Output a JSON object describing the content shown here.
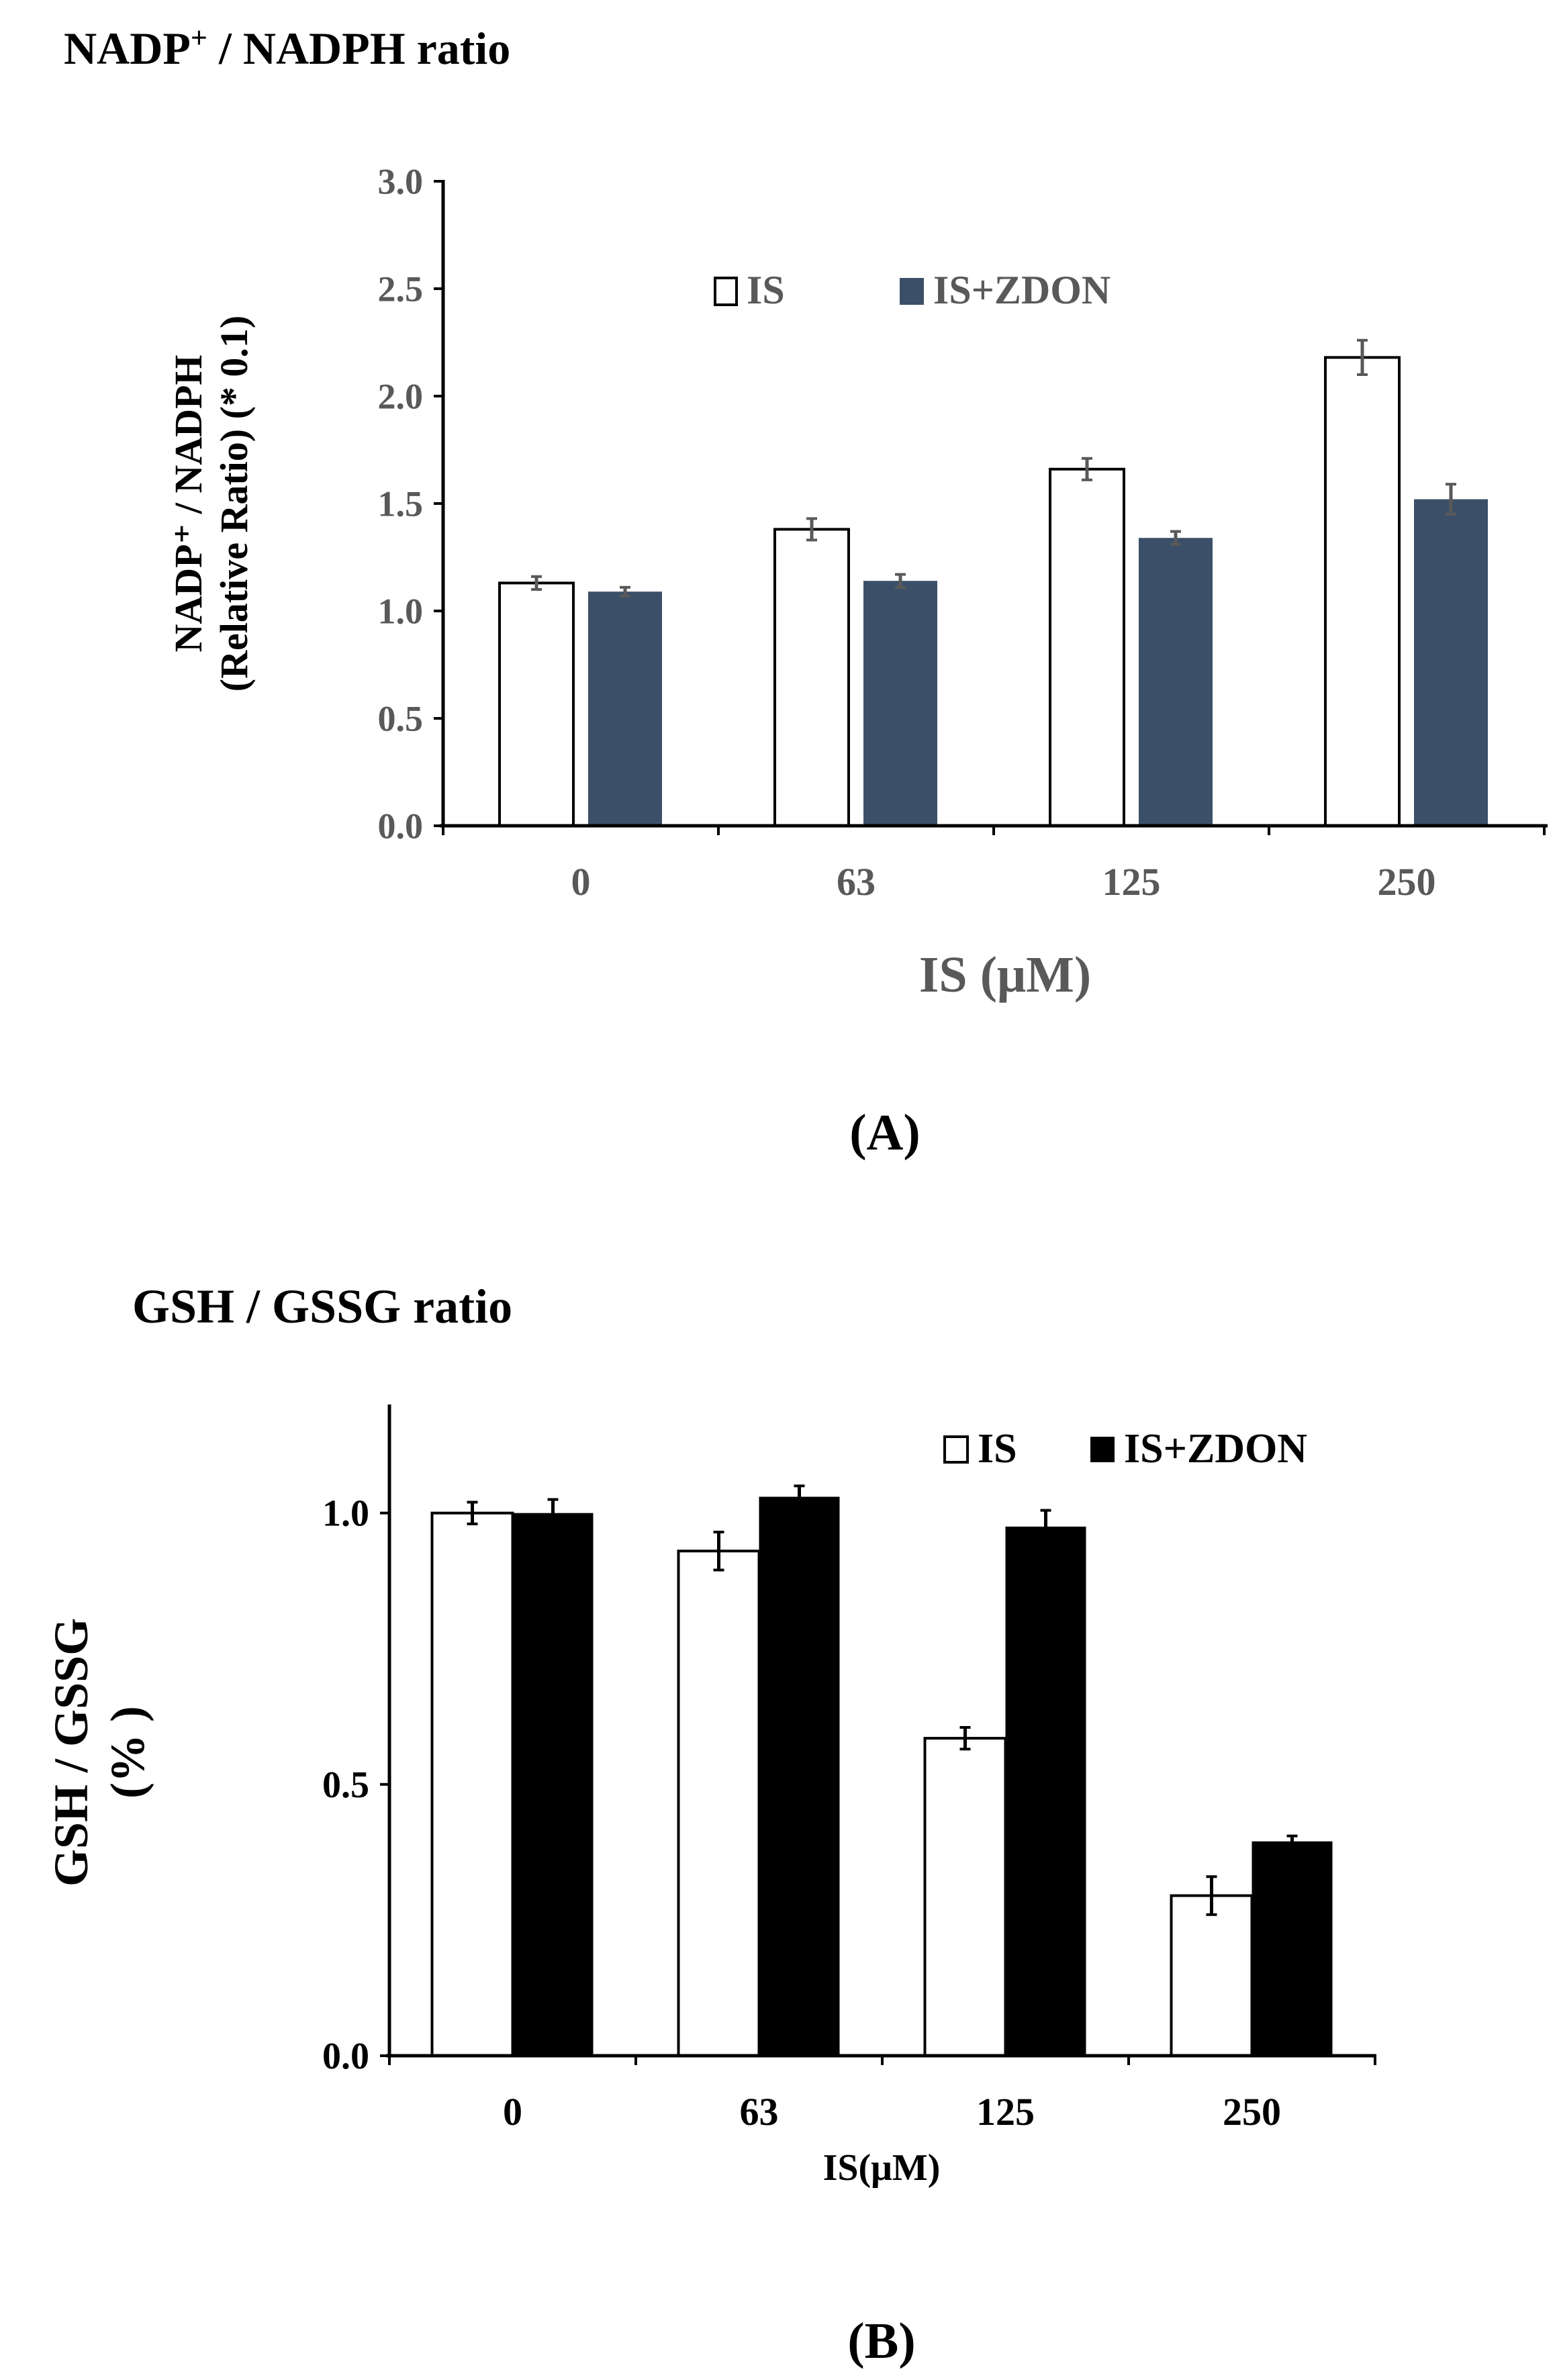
{
  "chart_data": [
    {
      "type": "bar",
      "panel_label": "(A)",
      "title_main": "NADP",
      "title_sup": "+",
      "title_rest": " / NADPH ratio",
      "ylabel_line1": "NADP⁺ / NADPH",
      "ylabel_line2": "(Relative Ratio) (* 0.1)",
      "xlabel": "IS (μM)",
      "categories": [
        "0",
        "63",
        "125",
        "250"
      ],
      "ylim": [
        0,
        3.0
      ],
      "yticks": [
        0.0,
        0.5,
        1.0,
        1.5,
        2.0,
        2.5,
        3.0
      ],
      "ytick_labels": [
        "0.0",
        "0.5",
        "1.0",
        "1.5",
        "2.0",
        "2.5",
        "3.0"
      ],
      "legend_position": "top-center",
      "series": [
        {
          "name": "IS",
          "values": [
            1.13,
            1.38,
            1.66,
            2.18
          ],
          "errors": [
            0.03,
            0.05,
            0.05,
            0.08
          ],
          "color": "#ffffff"
        },
        {
          "name": "IS+ZDON",
          "values": [
            1.09,
            1.14,
            1.34,
            1.52
          ],
          "errors": [
            0.02,
            0.03,
            0.03,
            0.07
          ],
          "color": "#3b5068"
        }
      ]
    },
    {
      "type": "bar",
      "panel_label": "(B)",
      "title": "GSH / GSSG ratio",
      "ylabel_line1": "GSH / GSSG",
      "ylabel_line2": "(% )",
      "xlabel": "IS(μM)",
      "categories": [
        "0",
        "63",
        "125",
        "250"
      ],
      "ylim": [
        0,
        1.2
      ],
      "yticks": [
        0.0,
        0.5,
        1.0
      ],
      "ytick_labels": [
        "0.0",
        "0.5",
        "1.0"
      ],
      "legend_position": "top-right",
      "series": [
        {
          "name": "IS",
          "values": [
            1.0,
            0.93,
            0.585,
            0.295
          ],
          "errors": [
            0.02,
            0.035,
            0.02,
            0.035
          ],
          "color": "#ffffff"
        },
        {
          "name": "IS+ZDON",
          "values": [
            1.0,
            1.03,
            0.975,
            0.395
          ],
          "errors": [
            0.025,
            0.02,
            0.03,
            0.01
          ],
          "color": "#000000"
        }
      ]
    }
  ]
}
